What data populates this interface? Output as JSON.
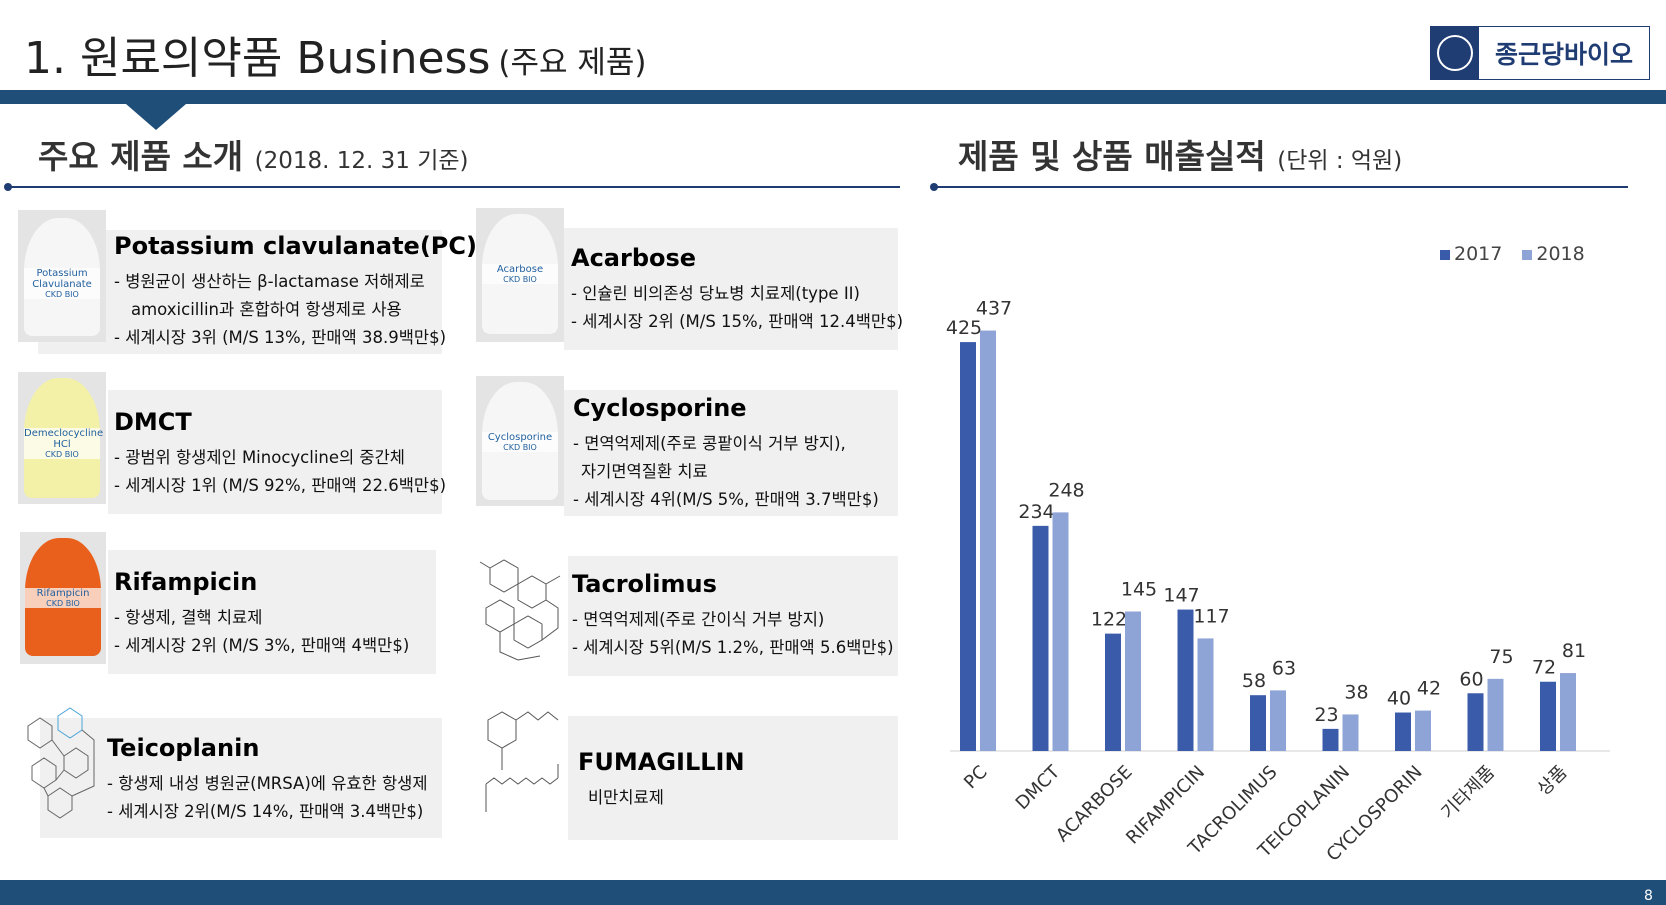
{
  "header": {
    "title": "1. 원료의약품 Business",
    "subtitle": "(주요 제품)",
    "logo_text": "종근당바이오"
  },
  "left_section": {
    "title": "주요 제품 소개",
    "date_note": "(2018. 12. 31 기준)"
  },
  "right_section": {
    "title": "제품 및 상품 매출실적",
    "unit_note": "(단위 : 억원)"
  },
  "products": [
    {
      "name": "Potassium clavulanate(PC)",
      "image_label": "Potassium Clavulanate",
      "desc": [
        "- 병원균이 생산하는 β-lactamase 저해제로",
        "   amoxicillin과 혼합하여 항생제로 사용",
        "- 세계시장 3위 (M/S 13%, 판매액 38.9백만$)"
      ]
    },
    {
      "name": "Acarbose",
      "image_label": "Acarbose",
      "desc": [
        "- 인슐린 비의존성 당뇨병 치료제(type II)",
        "- 세계시장 2위 (M/S 15%, 판매액 12.4백만$)"
      ]
    },
    {
      "name": "DMCT",
      "image_label": "Demeclocycline HCl",
      "desc": [
        "- 광범위 항생제인 Minocycline의 중간체",
        "- 세계시장 1위 (M/S 92%, 판매액 22.6백만$)"
      ]
    },
    {
      "name": "Cyclosporine",
      "image_label": "Cyclosporine",
      "desc": [
        "- 면역억제제(주로 콩팥이식 거부 방지),",
        "  자기면역질환 치료",
        "- 세계시장 4위(M/S 5%, 판매액 3.7백만$)"
      ]
    },
    {
      "name": "Rifampicin",
      "image_label": "Rifampicin",
      "desc": [
        "- 항생제, 결핵 치료제",
        "- 세계시장 2위 (M/S 3%, 판매액 4백만$)"
      ]
    },
    {
      "name": "Tacrolimus",
      "desc": [
        "- 면역억제제(주로 간이식 거부 방지)",
        "- 세계시장 5위(M/S 1.2%, 판매액 5.6백만$)"
      ]
    },
    {
      "name": "Teicoplanin",
      "desc": [
        "- 항생제 내성 병원균(MRSA)에 유효한 항생제",
        "- 세계시장 2위(M/S 14%, 판매액 3.4백만$)"
      ]
    },
    {
      "name": "FUMAGILLIN",
      "desc": [
        "비만치료제"
      ]
    }
  ],
  "jar_label_brand": "CKD BIO",
  "page_number": "8",
  "chart_data": {
    "type": "bar",
    "title": "",
    "categories": [
      "PC",
      "DMCT",
      "ACARBOSE",
      "RIFAMPICIN",
      "TACROLIMUS",
      "TEICOPLANIN",
      "CYCLOSPORIN",
      "기타제품",
      "상품"
    ],
    "series": [
      {
        "name": "2017",
        "values": [
          425,
          234,
          122,
          147,
          58,
          23,
          40,
          60,
          72
        ],
        "color": "#3a5ba9"
      },
      {
        "name": "2018",
        "values": [
          437,
          248,
          145,
          117,
          63,
          38,
          42,
          75,
          81
        ],
        "color": "#8ea3d6"
      }
    ],
    "ylim": [
      0,
      450
    ],
    "grid": false,
    "legend": "top-right",
    "data_labels": true
  }
}
